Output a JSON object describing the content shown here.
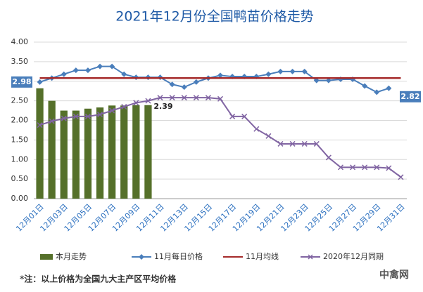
{
  "chart_data": {
    "type": "combo",
    "title": "2021年12月份全国鸭苗价格走势",
    "categories": [
      "12月01日",
      null,
      "12月03日",
      null,
      "12月05日",
      null,
      "12月07日",
      null,
      "12月09日",
      null,
      "12月11日",
      null,
      "12月13日",
      null,
      "12月15日",
      null,
      "12月17日",
      null,
      "12月19日",
      null,
      "12月21日",
      null,
      "12月23日",
      null,
      "12月25日",
      null,
      "12月27日",
      null,
      "12月29日",
      null,
      "12月31日"
    ],
    "series": [
      {
        "name": "本月走势",
        "type": "bar",
        "color": "#55702a",
        "values": [
          2.82,
          2.5,
          2.25,
          2.25,
          2.3,
          2.33,
          2.38,
          2.38,
          2.39,
          2.39,
          null,
          null,
          null,
          null,
          null,
          null,
          null,
          null,
          null,
          null,
          null,
          null,
          null,
          null,
          null,
          null,
          null,
          null,
          null,
          null,
          null
        ],
        "value_labels": [
          null,
          null,
          null,
          null,
          null,
          null,
          null,
          null,
          null,
          "2.39",
          null,
          null,
          null,
          null,
          null,
          null,
          null,
          null,
          null,
          null,
          null,
          null,
          null,
          null,
          null,
          null,
          null,
          null,
          null,
          null,
          null
        ]
      },
      {
        "name": "11月每日价格",
        "type": "line",
        "marker": "diamond",
        "color": "#4a7ebb",
        "values": [
          2.98,
          3.08,
          3.18,
          3.28,
          3.28,
          3.38,
          3.38,
          3.18,
          3.1,
          3.1,
          3.1,
          2.92,
          2.85,
          2.98,
          3.08,
          3.15,
          3.12,
          3.12,
          3.12,
          3.18,
          3.25,
          3.25,
          3.25,
          3.02,
          3.02,
          3.05,
          3.05,
          2.88,
          2.72,
          2.82,
          null
        ],
        "value_labels": [
          "2.98",
          null,
          null,
          null,
          null,
          null,
          null,
          null,
          null,
          null,
          null,
          null,
          null,
          null,
          null,
          null,
          null,
          null,
          null,
          null,
          null,
          null,
          null,
          null,
          null,
          null,
          null,
          null,
          null,
          "2.82",
          null
        ]
      },
      {
        "name": "11月均线",
        "type": "line",
        "marker": "none",
        "color": "#a52a2a",
        "values": [
          3.08,
          3.08,
          3.08,
          3.08,
          3.08,
          3.08,
          3.08,
          3.08,
          3.08,
          3.08,
          3.08,
          3.08,
          3.08,
          3.08,
          3.08,
          3.08,
          3.08,
          3.08,
          3.08,
          3.08,
          3.08,
          3.08,
          3.08,
          3.08,
          3.08,
          3.08,
          3.08,
          3.08,
          3.08,
          3.08,
          3.08
        ]
      },
      {
        "name": "2020年12月同期",
        "type": "line",
        "marker": "x",
        "color": "#8064a2",
        "values": [
          1.88,
          1.98,
          2.05,
          2.1,
          2.1,
          2.15,
          2.25,
          2.35,
          2.45,
          2.5,
          2.58,
          2.58,
          2.58,
          2.58,
          2.58,
          2.55,
          2.1,
          2.1,
          1.78,
          1.6,
          1.4,
          1.4,
          1.4,
          1.4,
          1.05,
          0.8,
          0.8,
          0.8,
          0.8,
          0.78,
          0.55
        ]
      }
    ],
    "ylim": [
      0,
      4
    ],
    "yticks": [
      {
        "value": 0,
        "label": "0.00"
      },
      {
        "value": 0.5,
        "label": "0.50"
      },
      {
        "value": 1,
        "label": "1.00"
      },
      {
        "value": 1.5,
        "label": "1.50"
      },
      {
        "value": 2,
        "label": "2.00"
      },
      {
        "value": 2.5,
        "label": "2.50"
      },
      {
        "value": 3,
        "label": "3.00"
      },
      {
        "value": 3.5,
        "label": "3.50"
      },
      {
        "value": 4,
        "label": "4.00"
      }
    ],
    "grid": true,
    "legend": "bottom",
    "note": "*注：以上价格为全国九大主产区平均价格",
    "watermark": "中禽网"
  }
}
